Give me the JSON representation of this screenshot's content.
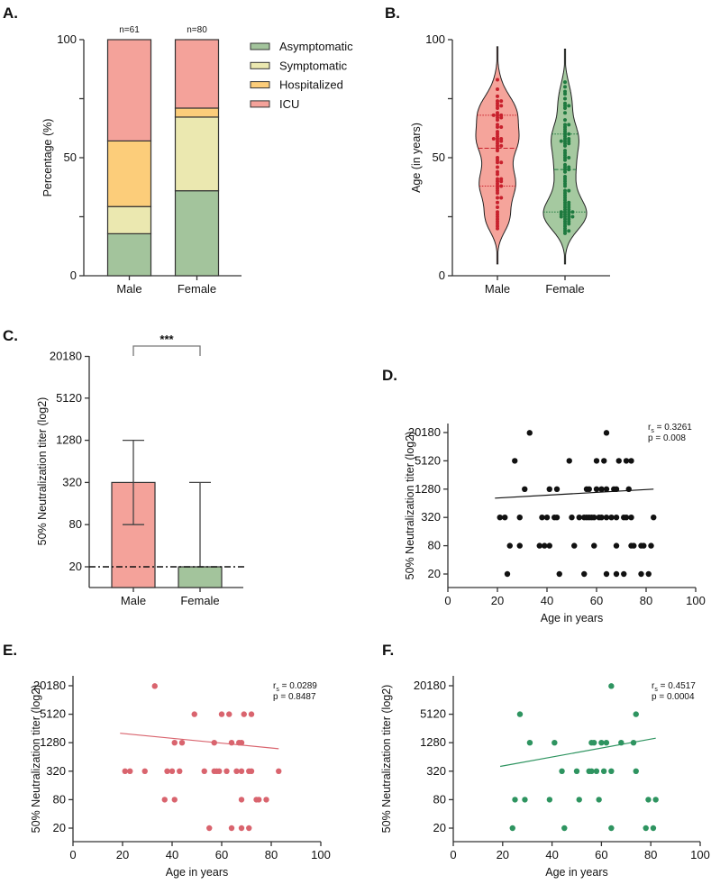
{
  "chart_data": [
    {
      "panel": "A.",
      "type": "bar",
      "stacked": true,
      "categories": [
        "Male",
        "Female"
      ],
      "n_labels": [
        "n=61",
        "n=80"
      ],
      "ylabel": "Percentage (%)",
      "ylim": [
        0,
        100
      ],
      "yticks": [
        0,
        25,
        50,
        75,
        100
      ],
      "ytick_labels": [
        "0",
        "",
        "50",
        "",
        "100"
      ],
      "legend_position": "right",
      "series": [
        {
          "name": "Asymptomatic",
          "color": "#a3c49c",
          "values": [
            17.8,
            36.0
          ]
        },
        {
          "name": "Symptomatic",
          "color": "#ebe8b0",
          "values": [
            11.5,
            31.2
          ]
        },
        {
          "name": "Hospitalized",
          "color": "#fccd7a",
          "values": [
            27.8,
            3.8
          ]
        },
        {
          "name": "ICU",
          "color": "#f4a29a",
          "values": [
            42.9,
            29.0
          ]
        }
      ]
    },
    {
      "panel": "B.",
      "type": "violin",
      "categories": [
        "Male",
        "Female"
      ],
      "ylabel": "Age (in years)",
      "ylim": [
        0,
        100
      ],
      "yticks": [
        0,
        25,
        50,
        75,
        100
      ],
      "ytick_labels": [
        "0",
        "",
        "50",
        "",
        "100"
      ],
      "series": [
        {
          "name": "Male",
          "fill": "#f5a49b",
          "dot": "#c8202c",
          "median": 54,
          "quartiles": [
            38,
            68
          ],
          "range": [
            5,
            97
          ],
          "values": [
            83,
            79,
            76,
            74,
            74,
            73,
            72,
            72,
            71,
            69,
            68,
            68,
            68,
            67,
            67,
            66,
            64,
            63,
            63,
            61,
            60,
            59,
            58,
            58,
            58,
            57,
            57,
            56,
            55,
            55,
            54,
            53,
            50,
            49,
            48,
            48,
            46,
            44,
            43,
            41,
            41,
            40,
            40,
            39,
            38,
            38,
            37,
            36,
            35,
            33,
            33,
            31,
            29,
            27,
            26,
            25,
            24,
            23,
            22,
            21,
            20
          ]
        },
        {
          "name": "Female",
          "fill": "#a5c9a0",
          "dot": "#1e7a3f",
          "median": 45,
          "quartiles": [
            27,
            60
          ],
          "range": [
            5,
            96
          ],
          "values": [
            82,
            80,
            78,
            77,
            75,
            73,
            72,
            72,
            71,
            69,
            66,
            64,
            64,
            63,
            62,
            61,
            60,
            60,
            59,
            58,
            58,
            57,
            57,
            57,
            56,
            56,
            55,
            53,
            52,
            51,
            50,
            50,
            49,
            47,
            46,
            46,
            45,
            45,
            44,
            42,
            41,
            40,
            39,
            38,
            36,
            36,
            35,
            34,
            33,
            32,
            31,
            31,
            30,
            30,
            29,
            29,
            28,
            28,
            27,
            27,
            27,
            27,
            26,
            26,
            26,
            25,
            25,
            25,
            25,
            24,
            24,
            23,
            23,
            22,
            22,
            21,
            20,
            19,
            19,
            18
          ]
        }
      ]
    },
    {
      "panel": "C.",
      "type": "bar",
      "categories": [
        "Male",
        "Female"
      ],
      "ylabel": "50% Neutralization titer (log2)",
      "yscale": "log",
      "yticks": [
        20,
        80,
        320,
        1280,
        5120,
        20180
      ],
      "ytick_labels": [
        "20",
        "80",
        "320",
        "1280",
        "5120",
        "20180"
      ],
      "values": [
        320,
        20
      ],
      "colors": [
        "#f4a29a",
        "#a3c49c"
      ],
      "error_low": [
        80,
        20
      ],
      "error_high": [
        1280,
        320
      ],
      "reference_line": 20,
      "significance": "***"
    },
    {
      "panel": "D.",
      "type": "scatter",
      "color": "#111111",
      "xlabel": "Age in years",
      "ylabel": "50% Neutralization titer (log2)",
      "xlim": [
        0,
        100
      ],
      "xticks": [
        "0",
        "20",
        "40",
        "60",
        "80",
        "100"
      ],
      "yticks": [
        "20",
        "80",
        "320",
        "1280",
        "5120",
        "20180"
      ],
      "stats": {
        "r_symbol": "r",
        "r_sub": "s",
        "r_value": " = 0.3261",
        "p_text": "p = 0.008"
      },
      "fit_line": {
        "x": [
          19,
          83
        ],
        "y": [
          822,
          1280
        ]
      },
      "points": [
        {
          "titer": 20180,
          "ages": [
            33,
            64
          ]
        },
        {
          "titer": 5120,
          "ages": [
            27,
            49,
            60,
            63,
            69,
            72,
            74
          ]
        },
        {
          "titer": 1280,
          "ages": [
            31,
            41,
            44,
            56,
            57,
            60,
            62,
            64,
            67,
            68,
            73
          ]
        },
        {
          "titer": 320,
          "ages": [
            21,
            23,
            29,
            38,
            40,
            43,
            44,
            50,
            53,
            55,
            56,
            57,
            58,
            59,
            61,
            62,
            64,
            66,
            68,
            71,
            72,
            74,
            83
          ]
        },
        {
          "titer": 80,
          "ages": [
            25,
            29,
            37,
            39,
            41,
            51,
            59,
            68,
            74,
            75,
            78,
            79,
            82
          ]
        },
        {
          "titer": 20,
          "ages": [
            24,
            45,
            55,
            64,
            68,
            71,
            78,
            81
          ]
        }
      ]
    },
    {
      "panel": "E.",
      "type": "scatter",
      "color": "#d9646e",
      "xlabel": "Age in years",
      "ylabel": "50% Neutralization titer (log2)",
      "xlim": [
        0,
        100
      ],
      "xticks": [
        "0",
        "20",
        "40",
        "60",
        "80",
        "100"
      ],
      "yticks": [
        "20",
        "80",
        "320",
        "1280",
        "5120",
        "20180"
      ],
      "stats": {
        "r_symbol": "r",
        "r_sub": "s",
        "r_value": " = 0.0289",
        "p_text": "p = 0.8487"
      },
      "fit_line": {
        "x": [
          19,
          83
        ],
        "y": [
          2032,
          956
        ]
      },
      "points": [
        {
          "titer": 20180,
          "ages": [
            33
          ]
        },
        {
          "titer": 5120,
          "ages": [
            49,
            60,
            63,
            69,
            72
          ]
        },
        {
          "titer": 1280,
          "ages": [
            41,
            44,
            57,
            64,
            67,
            68
          ]
        },
        {
          "titer": 320,
          "ages": [
            21,
            23,
            29,
            38,
            40,
            43,
            53,
            57,
            58,
            59,
            62,
            66,
            68,
            71,
            72,
            83
          ]
        },
        {
          "titer": 80,
          "ages": [
            37,
            41,
            68,
            74,
            75,
            78
          ]
        },
        {
          "titer": 20,
          "ages": [
            55,
            64,
            68,
            71
          ]
        }
      ]
    },
    {
      "panel": "F.",
      "type": "scatter",
      "color": "#2e9460",
      "xlabel": "Age in years",
      "ylabel": "50% Neutralization titer (log2)",
      "xlim": [
        0,
        100
      ],
      "xticks": [
        "0",
        "20",
        "40",
        "60",
        "80",
        "100"
      ],
      "yticks": [
        "20",
        "80",
        "320",
        "1280",
        "5120",
        "20180"
      ],
      "stats": {
        "r_symbol": "r",
        "r_sub": "s",
        "r_value": " = 0.4517",
        "p_text": "p = 0.0004"
      },
      "fit_line": {
        "x": [
          19,
          82
        ],
        "y": [
          404,
          1594
        ]
      },
      "points": [
        {
          "titer": 20180,
          "ages": [
            64
          ]
        },
        {
          "titer": 5120,
          "ages": [
            27,
            74
          ]
        },
        {
          "titer": 1280,
          "ages": [
            31,
            41,
            56,
            57,
            60,
            62,
            68,
            73
          ]
        },
        {
          "titer": 320,
          "ages": [
            44,
            50,
            55,
            56,
            58,
            61,
            64,
            74
          ]
        },
        {
          "titer": 80,
          "ages": [
            25,
            29,
            39,
            51,
            59,
            79,
            82
          ]
        },
        {
          "titer": 20,
          "ages": [
            24,
            45,
            64,
            78,
            81
          ]
        }
      ]
    }
  ]
}
